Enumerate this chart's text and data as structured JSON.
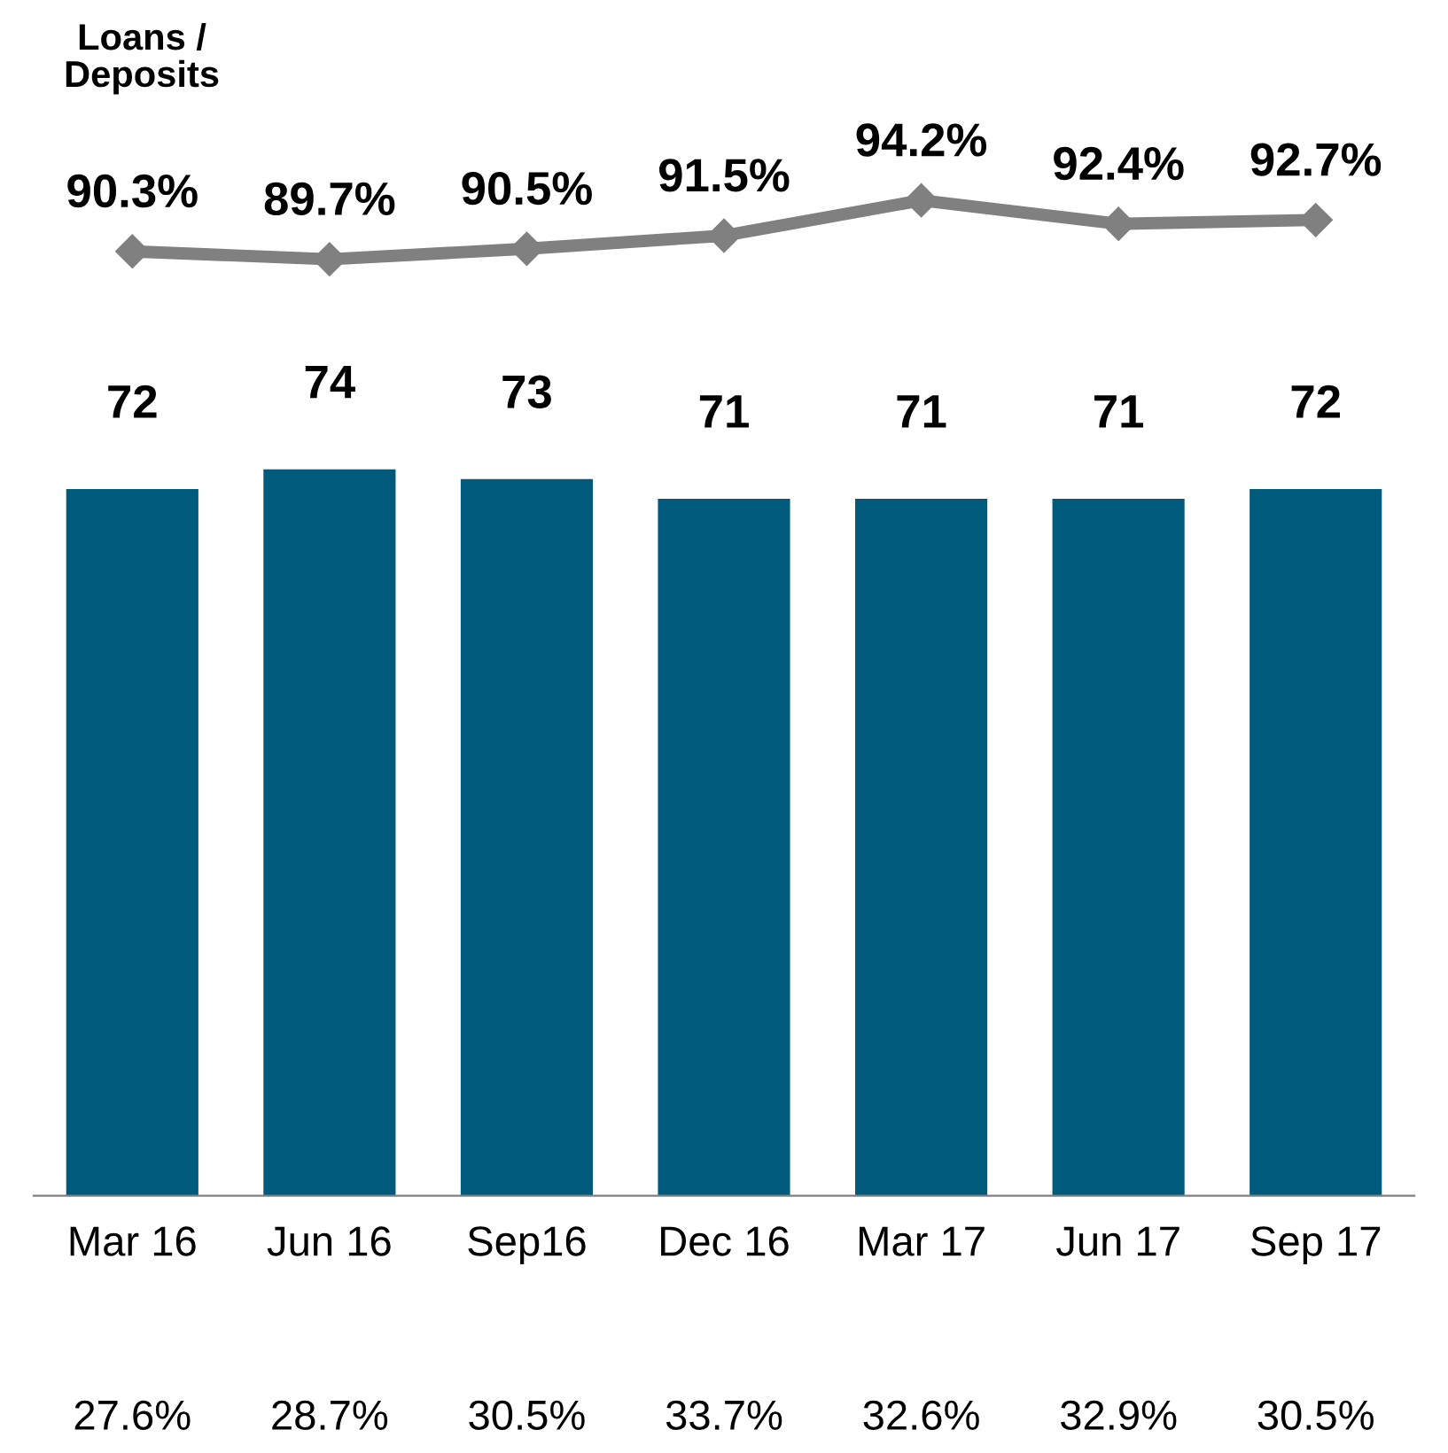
{
  "chart_data": [
    {
      "type": "line",
      "categories": [
        null,
        null,
        null,
        null,
        null,
        null,
        null
      ],
      "series": [
        {
          "name": "Loans / Deposits",
          "color": "#808080",
          "values": [
            90.3,
            89.7,
            90.5,
            91.5,
            94.2,
            92.4,
            92.7
          ],
          "value_labels": [
            "90.3%",
            "89.7%",
            "90.5%",
            "91.5%",
            "94.2%",
            "92.4%",
            "92.7%"
          ]
        }
      ],
      "marker": "diamond",
      "tick_labels": false,
      "grid": false,
      "legend": false
    },
    {
      "type": "bar",
      "categories": [
        "Mar 16",
        "Jun 16",
        "Sep16",
        "Dec 16",
        "Mar 17",
        "Jun 17",
        "Sep 17"
      ],
      "series": [
        {
          "type": "bar",
          "color": "#005a7c",
          "values": [
            72,
            74,
            73,
            71,
            71,
            71,
            72
          ]
        }
      ],
      "data_labels": true,
      "annotations": [
        "27.6%",
        "28.7%",
        "30.5%",
        "33.7%",
        "32.6%",
        "32.9%",
        "30.5%"
      ],
      "grid": false,
      "legend": false
    }
  ]
}
